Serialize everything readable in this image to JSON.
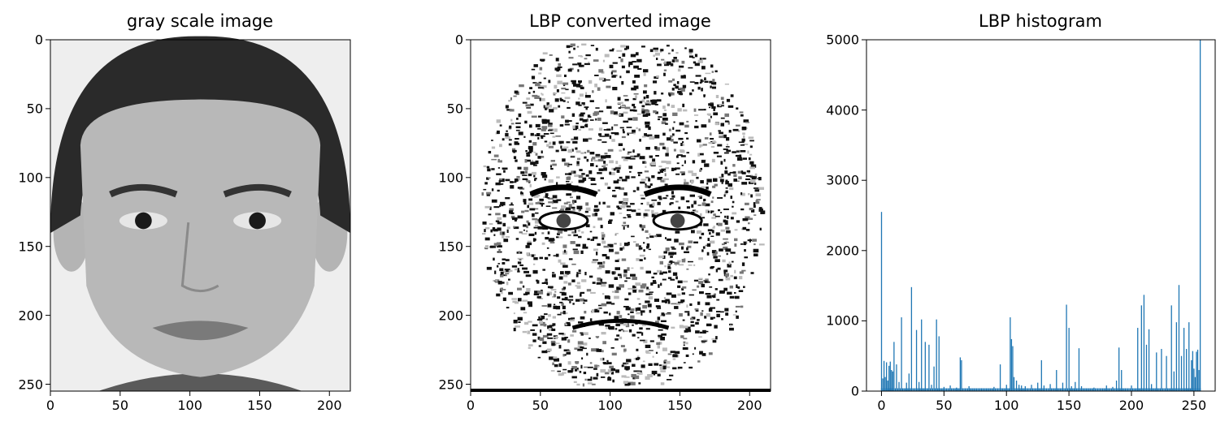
{
  "chart_data": [
    {
      "type": "image",
      "title": "gray scale image",
      "xlim": [
        0,
        215
      ],
      "ylim": [
        255,
        0
      ],
      "xticks": [
        0,
        50,
        100,
        150,
        200
      ],
      "yticks": [
        0,
        50,
        100,
        150,
        200,
        250
      ],
      "content": "grayscale face photograph"
    },
    {
      "type": "image",
      "title": "LBP converted image",
      "xlim": [
        0,
        215
      ],
      "ylim": [
        255,
        0
      ],
      "xticks": [
        0,
        50,
        100,
        150,
        200
      ],
      "yticks": [
        0,
        50,
        100,
        150,
        200,
        250
      ],
      "content": "local binary pattern texture of face"
    },
    {
      "type": "bar",
      "title": "LBP histogram",
      "xlim": [
        -12,
        267
      ],
      "ylim": [
        0,
        5000
      ],
      "xticks": [
        0,
        50,
        100,
        150,
        200,
        250
      ],
      "yticks": [
        0,
        1000,
        2000,
        3000,
        4000,
        5000
      ],
      "color": "#1f77b4",
      "x": [
        0,
        1,
        2,
        3,
        4,
        5,
        6,
        7,
        8,
        9,
        10,
        12,
        14,
        16,
        20,
        22,
        24,
        28,
        30,
        32,
        35,
        38,
        40,
        42,
        44,
        46,
        50,
        55,
        60,
        63,
        64,
        70,
        80,
        90,
        95,
        100,
        103,
        104,
        105,
        106,
        108,
        110,
        112,
        115,
        120,
        125,
        128,
        130,
        135,
        140,
        145,
        148,
        150,
        152,
        155,
        158,
        160,
        170,
        180,
        185,
        188,
        190,
        192,
        200,
        205,
        208,
        210,
        212,
        214,
        216,
        220,
        224,
        228,
        232,
        234,
        236,
        238,
        240,
        242,
        244,
        246,
        248,
        249,
        250,
        251,
        252,
        253,
        254,
        255
      ],
      "values": [
        2550,
        180,
        430,
        200,
        410,
        150,
        360,
        420,
        300,
        280,
        700,
        380,
        130,
        1050,
        120,
        250,
        1480,
        870,
        130,
        1020,
        700,
        660,
        90,
        350,
        1020,
        780,
        60,
        80,
        50,
        480,
        440,
        70,
        40,
        60,
        380,
        90,
        1050,
        740,
        640,
        200,
        150,
        90,
        80,
        70,
        90,
        120,
        440,
        80,
        100,
        300,
        120,
        1230,
        900,
        70,
        130,
        610,
        70,
        50,
        80,
        60,
        150,
        620,
        300,
        80,
        900,
        1220,
        1370,
        660,
        880,
        100,
        550,
        600,
        500,
        1220,
        280,
        980,
        1510,
        500,
        900,
        600,
        980,
        440,
        570,
        320,
        200,
        560,
        590,
        300,
        5000
      ]
    }
  ]
}
